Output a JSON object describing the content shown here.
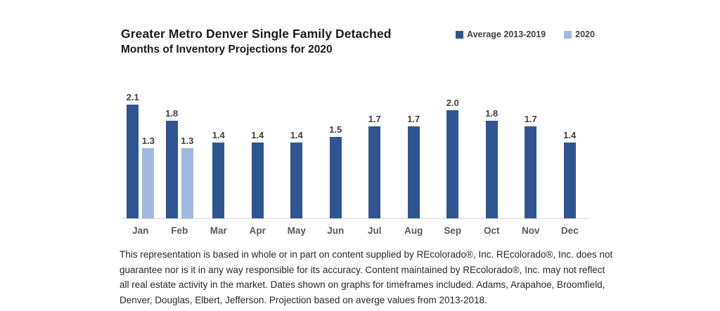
{
  "header": {
    "title": "Greater Metro Denver Single Family Detached",
    "subtitle": "Months of Inventory Projections for 2020"
  },
  "legend": {
    "items": [
      {
        "label": "Average 2013-2019",
        "color": "#2e5591"
      },
      {
        "label": "2020",
        "color": "#a3b8de"
      }
    ]
  },
  "chart_data": {
    "type": "bar",
    "title": "Greater Metro Denver Single Family Detached",
    "subtitle": "Months of Inventory Projections for 2020",
    "categories": [
      "Jan",
      "Feb",
      "Mar",
      "Apr",
      "May",
      "Jun",
      "Jul",
      "Aug",
      "Sep",
      "Oct",
      "Nov",
      "Dec"
    ],
    "series": [
      {
        "name": "Average 2013-2019",
        "color": "#2e5591",
        "values": [
          2.1,
          1.8,
          1.4,
          1.4,
          1.4,
          1.5,
          1.7,
          1.7,
          2.0,
          1.8,
          1.7,
          1.4
        ]
      },
      {
        "name": "2020",
        "color": "#a3b8de",
        "values": [
          1.3,
          1.3,
          null,
          null,
          null,
          null,
          null,
          null,
          null,
          null,
          null,
          null
        ]
      }
    ],
    "ylim": [
      0,
      2.4
    ],
    "grid": false,
    "legend_position": "top-right",
    "value_labels": true,
    "value_label_decimals": 1,
    "axis_line_color": "#d6d6d6"
  },
  "footer": {
    "lines": [
      "This representation is based in whole or in part on content supplied by REcolorado®, Inc. REcolorado®, Inc. does not",
      "guarantee nor is it in any way responsible for its accuracy. Content maintained by REcolorado®, Inc. may not reflect",
      "all real estate activity in the market. Dates shown on graphs for timeframes included.  Adams, Arapahoe, Broomfield,",
      "Denver, Douglas, Elbert, Jefferson. Projection based on averge values from 2013-2018."
    ]
  }
}
